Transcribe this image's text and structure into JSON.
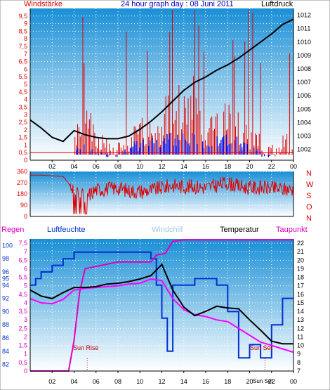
{
  "header": {
    "left_label": "Windstärke",
    "title": "24 hour graph day : 08 Juni 2011",
    "right_label": "Luftdruck"
  },
  "colors": {
    "wind": "#e00000",
    "gust": "#0000e0",
    "pressure": "#000000",
    "direction": "#e00000",
    "humidity": "#0030d0",
    "rain": "#e000c0",
    "dew": "#ff00ff",
    "temperature": "#000000",
    "windchill": "#a0c8e8",
    "grid": "#ffffff"
  },
  "x_axis": {
    "ticks": [
      "02",
      "04",
      "06",
      "08",
      "10",
      "12",
      "14",
      "16",
      "18",
      "20",
      "22",
      "00"
    ]
  },
  "chart_data": [
    {
      "type": "line",
      "title": "24 hour graph day : 08 Juni 2011",
      "left_axis_label": "Windstärke",
      "right_axis_label": "Luftdruck",
      "left_ticks": [
        "0",
        "0,5",
        "1",
        "1,5",
        "2",
        "2,5",
        "3",
        "3,5",
        "4",
        "4,5",
        "5",
        "5,5",
        "6",
        "6,5",
        "7",
        "7,5",
        "8",
        "8,5",
        "9",
        "9,5"
      ],
      "right_ticks": [
        "1002",
        "1003",
        "1004",
        "1005",
        "1006",
        "1007",
        "1008",
        "1009",
        "1010",
        "1011",
        "1012"
      ],
      "ylim_left": [
        0,
        10
      ],
      "ylim_right": [
        1001.2,
        1012.5
      ],
      "series": [
        {
          "name": "Luftdruck",
          "axis": "right",
          "x": [
            0,
            1,
            2,
            3,
            4,
            5,
            6,
            7,
            8,
            9,
            10,
            11,
            12,
            13,
            14,
            15,
            16,
            17,
            18,
            19,
            20,
            21,
            22,
            23,
            24
          ],
          "values": [
            1004.2,
            1003.6,
            1002.9,
            1002.6,
            1003.4,
            1003.1,
            1002.9,
            1002.8,
            1002.8,
            1003.0,
            1003.5,
            1004.1,
            1004.8,
            1005.6,
            1006.4,
            1007.0,
            1007.4,
            1007.9,
            1008.3,
            1008.8,
            1009.4,
            1010.0,
            1010.6,
            1011.3,
            1011.7
          ]
        },
        {
          "name": "Windstärke",
          "axis": "left",
          "render": "bars",
          "x_step_h": 0.1,
          "values_by_hour_mean": [
            0,
            0,
            0,
            0,
            1.2,
            1.5,
            0.8,
            0.5,
            0.9,
            1.1,
            1.4,
            1.6,
            2.0,
            2.4,
            2.8,
            2.0,
            1.6,
            1.8,
            2.0,
            1.4,
            1.0,
            0.6,
            0.5,
            0.8,
            0.4
          ]
        },
        {
          "name": "Böen",
          "axis": "left",
          "render": "bars",
          "values_by_hour_mean": [
            0,
            0,
            0,
            0,
            1.0,
            0.6,
            0.4,
            0.3,
            0.6,
            0.9,
            1.2,
            1.4,
            1.6,
            1.4,
            1.6,
            1.2,
            1.0,
            1.3,
            1.2,
            1.0,
            0.6,
            0.3,
            0,
            0,
            0
          ]
        }
      ]
    },
    {
      "type": "line",
      "left_ticks": [
        "0",
        "90",
        "180",
        "270",
        "360"
      ],
      "right_labels": [
        "N",
        "W",
        "S",
        "O",
        "N"
      ],
      "ylim": [
        0,
        360
      ],
      "series": [
        {
          "name": "Windrichtung",
          "x": [
            0,
            1,
            2,
            3,
            4,
            5,
            6,
            7,
            8,
            9,
            10,
            11,
            12,
            13,
            14,
            15,
            16,
            17,
            18,
            19,
            20,
            21,
            22,
            23,
            24
          ],
          "values": [
            330,
            330,
            325,
            320,
            210,
            150,
            215,
            220,
            230,
            205,
            200,
            210,
            230,
            250,
            240,
            240,
            230,
            250,
            270,
            240,
            230,
            230,
            225,
            220,
            215
          ]
        }
      ]
    },
    {
      "type": "line",
      "legend": [
        "Regen",
        "Luftfeuchte",
        "Windchill",
        "Temperatur",
        "Taupunkt"
      ],
      "humidity_ticks": [
        "82",
        "84",
        "86",
        "88",
        "90",
        "92",
        "94",
        "95",
        "96",
        "98",
        "100"
      ],
      "rain_ticks": [
        "0",
        "0,5",
        "1",
        "1,5",
        "2",
        "2,5",
        "3",
        "3,5",
        "4",
        "4,5",
        "5",
        "5,5",
        "6",
        "6,5",
        "7",
        "7,5"
      ],
      "temp_ticks": [
        "7",
        "8",
        "9",
        "10",
        "11",
        "12",
        "13",
        "14",
        "15",
        "16",
        "17",
        "18",
        "19",
        "20",
        "21",
        "22"
      ],
      "ylim_rain": [
        0,
        7.75
      ],
      "ylim_temp": [
        7,
        22.5
      ],
      "annotations": [
        "Sun Rise",
        "Sun Set"
      ],
      "series": [
        {
          "name": "Temperatur",
          "x": [
            0,
            1,
            2,
            3,
            4,
            5,
            6,
            7,
            8,
            9,
            10,
            11,
            12,
            13,
            14,
            15,
            16,
            17,
            18,
            19,
            20,
            21,
            22,
            23,
            24
          ],
          "values": [
            16.5,
            15.8,
            15.5,
            16.2,
            16.8,
            16.8,
            16.9,
            17.2,
            17.3,
            17.5,
            17.8,
            18.2,
            19.5,
            16.5,
            14.5,
            13.5,
            14.0,
            14.6,
            14.4,
            14.3,
            13.0,
            11.8,
            10.5,
            10.2,
            10.2
          ]
        },
        {
          "name": "Taupunkt",
          "x": [
            0,
            1,
            2,
            3,
            4,
            5,
            6,
            7,
            8,
            9,
            10,
            11,
            12,
            13,
            14,
            15,
            16,
            17,
            18,
            19,
            20,
            21,
            22,
            23,
            24
          ],
          "values": [
            15.5,
            15.0,
            14.9,
            15.4,
            16.5,
            16.7,
            16.8,
            16.9,
            17.0,
            17.2,
            17.3,
            17.8,
            17.6,
            15.5,
            14.2,
            13.6,
            13.4,
            13.0,
            12.8,
            12.0,
            11.2,
            10.4,
            10.0,
            9.6,
            9.2
          ]
        },
        {
          "name": "Regen",
          "x": [
            0,
            3.5,
            4.0,
            4.5,
            5.0,
            8.0,
            11.0,
            11.5,
            12.3,
            13.0,
            14.0,
            16.0,
            20.0,
            24.0
          ],
          "values": [
            0,
            0,
            1.8,
            4.6,
            6.0,
            6.4,
            6.4,
            6.8,
            6.9,
            7.6,
            7.7,
            7.7,
            7.7,
            7.7
          ]
        },
        {
          "name": "Luftfeuchte",
          "x": [
            0,
            0.5,
            1.0,
            2.0,
            3.0,
            4.0,
            5.0,
            8.0,
            11.0,
            11.5,
            12.0,
            12.5,
            13.0,
            14.0,
            15.0,
            16.0,
            17.0,
            18.0,
            19.0,
            20.0,
            21.0,
            22.0,
            23.0,
            24.0
          ],
          "values": [
            94,
            95,
            96,
            97,
            98,
            99,
            99,
            99,
            98,
            94,
            89,
            84,
            94,
            94,
            95,
            95,
            94,
            90,
            83,
            85,
            83,
            88,
            92,
            92
          ]
        }
      ]
    }
  ],
  "annotations": {
    "sun_rise": "Sun Rise",
    "sun_set": "Sun Set",
    "sun_set_axis": "Sun Set"
  },
  "legend": {
    "regen": "Regen",
    "luftfeuchte": "Luftfeuchte",
    "windchill": "Windchill",
    "temperatur": "Temperatur",
    "taupunkt": "Taupunkt"
  }
}
